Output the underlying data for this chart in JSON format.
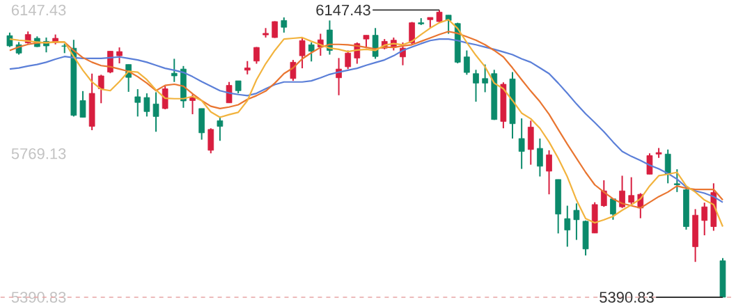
{
  "chart_data": {
    "type": "candlestick",
    "categories": [
      null,
      null,
      null,
      null,
      null,
      null,
      null,
      null,
      null,
      null,
      null,
      null,
      null,
      null,
      null,
      null,
      null,
      null,
      null,
      null,
      null,
      null,
      null,
      null,
      null,
      null,
      null,
      null,
      null,
      null,
      null,
      null,
      null,
      null,
      null,
      null,
      null,
      null,
      null,
      null,
      null,
      null,
      null,
      null,
      null,
      null,
      null,
      null,
      null,
      null,
      null,
      null,
      null,
      null,
      null,
      null,
      null,
      null,
      null,
      null,
      null,
      null,
      null,
      null,
      null,
      null,
      null,
      null,
      null,
      null,
      null,
      null,
      null,
      null,
      null,
      null,
      null,
      null,
      null
    ],
    "ohlc": [
      [
        6080,
        6088,
        6050,
        6053
      ],
      [
        6056,
        6063,
        6030,
        6034
      ],
      [
        6061,
        6091,
        6059,
        6083
      ],
      [
        6073,
        6078,
        6050,
        6051
      ],
      [
        6065,
        6075,
        6036,
        6053
      ],
      [
        6062,
        6083,
        6057,
        6073
      ],
      [
        6053,
        6059,
        6034,
        6052
      ],
      [
        6047,
        6069,
        5867,
        5870
      ],
      [
        5909,
        5934,
        5865,
        5865
      ],
      [
        5841,
        5980,
        5831,
        5928
      ],
      [
        5940,
        5977,
        5902,
        5974
      ],
      [
        5984,
        6039,
        5981,
        6039
      ],
      [
        6027,
        6049,
        6007,
        6038
      ],
      [
        6004,
        6004,
        5932,
        5970
      ],
      [
        5919,
        5939,
        5867,
        5904
      ],
      [
        5917,
        5928,
        5867,
        5880
      ],
      [
        5900,
        5931,
        5827,
        5867
      ],
      [
        5888,
        5947,
        5886,
        5940
      ],
      [
        5981,
        6019,
        5958,
        5974
      ],
      [
        5992,
        6000,
        5890,
        5908
      ],
      [
        5909,
        5925,
        5873,
        5917
      ],
      [
        5888,
        5888,
        5806,
        5824
      ],
      [
        5778,
        5836,
        5770,
        5833
      ],
      [
        5856,
        5867,
        5803,
        5841
      ],
      [
        5903,
        5958,
        5903,
        5949
      ],
      [
        5961,
        5961,
        5928,
        5935
      ],
      [
        5989,
        6013,
        5978,
        5995
      ],
      [
        6013,
        6050,
        6006,
        6049
      ],
      [
        6082,
        6100,
        6075,
        6086
      ],
      [
        6075,
        6118,
        6074,
        6117
      ],
      [
        6120,
        6128,
        6088,
        6102
      ],
      [
        5967,
        6016,
        5961,
        6010
      ],
      [
        6027,
        6073,
        5994,
        6067
      ],
      [
        6056,
        6062,
        6012,
        6039
      ],
      [
        6050,
        6085,
        6027,
        6069
      ],
      [
        6095,
        6120,
        6030,
        6041
      ],
      [
        5969,
        6021,
        5923,
        5992
      ],
      [
        5998,
        6041,
        5992,
        6034
      ],
      [
        6021,
        6062,
        6006,
        6059
      ],
      [
        6071,
        6081,
        6047,
        6081
      ],
      [
        6081,
        6100,
        6019,
        6025
      ],
      [
        6047,
        6071,
        6044,
        6065
      ],
      [
        6049,
        6075,
        6041,
        6068
      ],
      [
        6024,
        6062,
        6002,
        6047
      ],
      [
        6061,
        6116,
        6057,
        6114
      ],
      [
        6114,
        6126,
        6108,
        6111
      ],
      [
        6122,
        6128,
        6100,
        6128
      ],
      [
        6117,
        6147.43,
        6114,
        6142
      ],
      [
        6134,
        6134,
        6085,
        6120
      ],
      [
        6112,
        6114,
        6007,
        6010
      ],
      [
        6024,
        6041,
        5977,
        5983
      ],
      [
        5980,
        5990,
        5906,
        5955
      ],
      [
        5967,
        6004,
        5931,
        5955
      ],
      [
        5980,
        5990,
        5858,
        5859
      ],
      [
        5854,
        5957,
        5836,
        5952
      ],
      [
        5966,
        5984,
        5809,
        5848
      ],
      [
        5809,
        5862,
        5729,
        5775
      ],
      [
        5780,
        5856,
        5740,
        5839
      ],
      [
        5783,
        5809,
        5709,
        5736
      ],
      [
        5723,
        5778,
        5662,
        5766
      ],
      [
        5701,
        5701,
        5559,
        5610
      ],
      [
        5598,
        5632,
        5524,
        5568
      ],
      [
        5620,
        5638,
        5542,
        5595
      ],
      [
        5591,
        5593,
        5501,
        5518
      ],
      [
        5560,
        5641,
        5560,
        5635
      ],
      [
        5632,
        5699,
        5629,
        5671
      ],
      [
        5650,
        5650,
        5595,
        5610
      ],
      [
        5629,
        5711,
        5626,
        5671
      ],
      [
        5641,
        5707,
        5635,
        5659
      ],
      [
        5626,
        5665,
        5599,
        5662
      ],
      [
        5715,
        5770,
        5715,
        5764
      ],
      [
        5768,
        5784,
        5758,
        5772
      ],
      [
        5768,
        5780,
        5691,
        5715
      ],
      [
        5690,
        5728,
        5668,
        5687
      ],
      [
        5674,
        5678,
        5569,
        5577
      ],
      [
        5524,
        5623,
        5484,
        5607
      ],
      [
        5593,
        5640,
        5554,
        5629
      ],
      [
        5577,
        5691,
        5566,
        5667
      ],
      [
        5487,
        5494,
        5390.83,
        5391
      ]
    ],
    "colors": [
      "#0b8a6b",
      "#0b8a6b",
      "#d81e3f",
      "#0b8a6b",
      "#0b8a6b",
      "#d81e3f",
      "#0b8a6b",
      "#0b8a6b",
      "#0b8a6b",
      "#d81e3f",
      "#d81e3f",
      "#d81e3f",
      "#d81e3f",
      "#0b8a6b",
      "#0b8a6b",
      "#0b8a6b",
      "#0b8a6b",
      "#d81e3f",
      "#0b8a6b",
      "#0b8a6b",
      "#d81e3f",
      "#0b8a6b",
      "#d81e3f",
      "#0b8a6b",
      "#d81e3f",
      "#0b8a6b",
      "#d81e3f",
      "#d81e3f",
      "#d81e3f",
      "#d81e3f",
      "#0b8a6b",
      "#d81e3f",
      "#d81e3f",
      "#0b8a6b",
      "#d81e3f",
      "#0b8a6b",
      "#d81e3f",
      "#d81e3f",
      "#d81e3f",
      "#d81e3f",
      "#0b8a6b",
      "#d81e3f",
      "#d81e3f",
      "#d81e3f",
      "#d81e3f",
      "#0b8a6b",
      "#d81e3f",
      "#d81e3f",
      "#0b8a6b",
      "#0b8a6b",
      "#0b8a6b",
      "#0b8a6b",
      "#0b8a6b",
      "#0b8a6b",
      "#d81e3f",
      "#0b8a6b",
      "#0b8a6b",
      "#d81e3f",
      "#0b8a6b",
      "#d81e3f",
      "#0b8a6b",
      "#0b8a6b",
      "#0b8a6b",
      "#0b8a6b",
      "#d81e3f",
      "#d81e3f",
      "#0b8a6b",
      "#d81e3f",
      "#d81e3f",
      "#d81e3f",
      "#d81e3f",
      "#d81e3f",
      "#0b8a6b",
      "#0b8a6b",
      "#0b8a6b",
      "#d81e3f",
      "#d81e3f",
      "#d81e3f",
      "#0b8a6b"
    ],
    "series": [
      {
        "type": "line",
        "color": "#5b7fd8",
        "values": [
          5992,
          5995,
          6000,
          6004,
          6010,
          6018,
          6025,
          6022,
          6020,
          6020,
          6020,
          6022,
          6024,
          6020,
          6016,
          6010,
          6002,
          5994,
          5989,
          5983,
          5972,
          5959,
          5947,
          5935,
          5929,
          5925,
          5922,
          5928,
          5940,
          5951,
          5958,
          5958,
          5958,
          5961,
          5969,
          5978,
          5984,
          5989,
          5994,
          6002,
          6009,
          6016,
          6027,
          6041,
          6050,
          6059,
          6067,
          6071,
          6071,
          6067,
          6061,
          6056,
          6050,
          6044,
          6037,
          6030,
          6019,
          6010,
          5995,
          5980,
          5955,
          5928,
          5900,
          5874,
          5851,
          5827,
          5800,
          5775,
          5762,
          5751,
          5739,
          5729,
          5717,
          5702,
          5681,
          5671,
          5665,
          5656,
          5641
        ]
      },
      {
        "type": "line",
        "color": "#e97530",
        "values": [
          6041,
          6050,
          6057,
          6061,
          6062,
          6063,
          6063,
          6041,
          6022,
          6010,
          6001,
          5998,
          5992,
          5986,
          5972,
          5955,
          5935,
          5949,
          5952,
          5947,
          5927,
          5909,
          5894,
          5888,
          5892,
          5898,
          5912,
          5922,
          5934,
          5955,
          5980,
          5995,
          6019,
          6035,
          6049,
          6057,
          6057,
          6056,
          6053,
          6049,
          6045,
          6050,
          6049,
          6053,
          6056,
          6065,
          6074,
          6083,
          6091,
          6086,
          6077,
          6068,
          6056,
          6041,
          6024,
          5995,
          5964,
          5934,
          5906,
          5873,
          5833,
          5794,
          5757,
          5720,
          5687,
          5668,
          5650,
          5638,
          5632,
          5626,
          5641,
          5656,
          5668,
          5684,
          5678,
          5675,
          5675,
          5675,
          5647
        ]
      },
      {
        "type": "line",
        "color": "#f2b33d",
        "values": [
          6071,
          6068,
          6066,
          6063,
          6061,
          6063,
          6063,
          6025,
          5989,
          5958,
          5939,
          5935,
          5959,
          5986,
          5984,
          5964,
          5937,
          5915,
          5914,
          5914,
          5920,
          5909,
          5879,
          5865,
          5872,
          5878,
          5909,
          5964,
          6006,
          6041,
          6071,
          6073,
          6075,
          6065,
          6056,
          6047,
          6044,
          6038,
          6042,
          6044,
          6041,
          6055,
          6059,
          6056,
          6065,
          6083,
          6100,
          6114,
          6122,
          6099,
          6062,
          6028,
          5998,
          5955,
          5940,
          5909,
          5876,
          5861,
          5836,
          5800,
          5757,
          5708,
          5647,
          5598,
          5587,
          5595,
          5604,
          5620,
          5634,
          5650,
          5684,
          5711,
          5715,
          5720,
          5684,
          5668,
          5647,
          5635,
          5577
        ]
      }
    ],
    "ylim": [
      5390.83,
      6147.43
    ],
    "yticks": [
      6147.43,
      5769.13,
      5390.83
    ],
    "tick_labels": "y",
    "annotations": [
      "6147.43",
      "5390.83"
    ],
    "ref_lines": [
      {
        "axis": "y",
        "value": 5390.83,
        "color": "#e8a4a4",
        "line_style": "dashed"
      }
    ]
  }
}
